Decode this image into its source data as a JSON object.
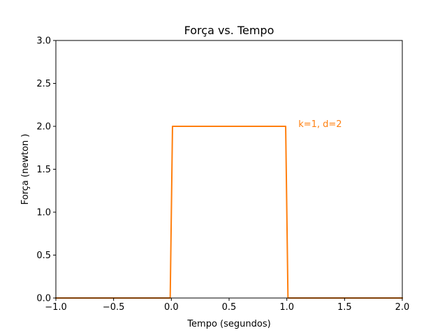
{
  "chart_data": {
    "type": "line",
    "title": "Força vs. Tempo",
    "xlabel": "Tempo (segundos)",
    "ylabel": "Força (newton )",
    "xlim": [
      -1.0,
      2.0
    ],
    "ylim": [
      0.0,
      3.0
    ],
    "x_ticks": [
      -1.0,
      -0.5,
      0.0,
      0.5,
      1.0,
      1.5,
      2.0
    ],
    "x_tick_labels": [
      "−1.0",
      "−0.5",
      "0.0",
      "0.5",
      "1.0",
      "1.5",
      "2.0"
    ],
    "y_ticks": [
      0.0,
      0.5,
      1.0,
      1.5,
      2.0,
      2.5,
      3.0
    ],
    "y_tick_labels": [
      "0.0",
      "0.5",
      "1.0",
      "1.5",
      "2.0",
      "2.5",
      "3.0"
    ],
    "grid": false,
    "legend": "none",
    "series": [
      {
        "color": "#ff7f0e",
        "x": [
          -1.0,
          -0.01,
          0.01,
          0.99,
          1.01,
          2.0
        ],
        "y": [
          0.0,
          0.0,
          2.0,
          2.0,
          0.0,
          0.0
        ]
      }
    ],
    "annotations": [
      {
        "text": "k=1, d=2",
        "x": 1.1,
        "y": 2.0,
        "color": "#ff7f0e"
      }
    ]
  }
}
